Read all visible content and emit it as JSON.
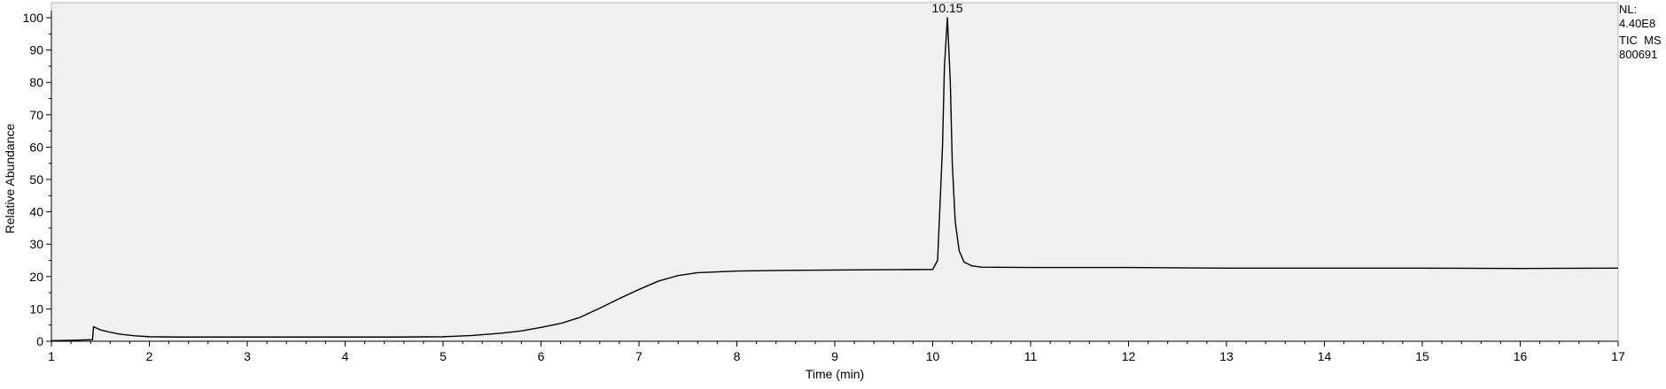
{
  "chart_data": {
    "type": "line",
    "xlabel": "Time (min)",
    "ylabel": "Relative Abundance",
    "xlim": [
      1,
      17
    ],
    "ylim": [
      0,
      100
    ],
    "x_ticks": [
      "1",
      "2",
      "3",
      "4",
      "5",
      "6",
      "7",
      "8",
      "9",
      "10",
      "11",
      "12",
      "13",
      "14",
      "15",
      "16",
      "17"
    ],
    "y_ticks": [
      "0",
      "10",
      "20",
      "30",
      "40",
      "50",
      "60",
      "70",
      "80",
      "90",
      "100"
    ],
    "x_minor_step": 0.2,
    "y_minor_step": 5,
    "grid": false,
    "plot_background": "#f0f0f0",
    "line_color": "#000000",
    "peak_label": "10.15",
    "peak": {
      "x": 10.15,
      "y": 100
    },
    "info": {
      "nl_label": "NL:",
      "nl_value": "4.40E8",
      "scan": "TIC  MS",
      "file": "800691"
    },
    "series": [
      {
        "x": [
          1.0,
          1.2,
          1.42,
          1.43,
          1.5,
          1.6,
          1.7,
          1.85,
          2.0,
          2.3,
          2.6,
          3.0,
          3.5,
          4.0,
          4.5,
          5.0,
          5.3,
          5.6,
          5.8,
          6.0,
          6.2,
          6.4,
          6.6,
          6.8,
          7.0,
          7.2,
          7.4,
          7.6,
          8.0,
          8.5,
          9.0,
          9.5,
          10.0,
          10.05,
          10.1,
          10.12,
          10.15,
          10.18,
          10.2,
          10.23,
          10.27,
          10.32,
          10.4,
          10.5,
          11.0,
          12.0,
          13.0,
          14.0,
          15.0,
          16.0,
          17.0
        ],
        "y": [
          0.2,
          0.3,
          0.5,
          4.5,
          3.5,
          2.8,
          2.2,
          1.7,
          1.4,
          1.3,
          1.3,
          1.3,
          1.3,
          1.3,
          1.3,
          1.4,
          1.8,
          2.5,
          3.2,
          4.3,
          5.5,
          7.4,
          10.2,
          13.2,
          16.0,
          18.6,
          20.3,
          21.2,
          21.7,
          21.9,
          22.0,
          22.1,
          22.2,
          25.0,
          60.0,
          85.0,
          100.0,
          80.0,
          55.0,
          37.0,
          28.0,
          24.5,
          23.3,
          22.9,
          22.8,
          22.8,
          22.6,
          22.6,
          22.6,
          22.5,
          22.6
        ]
      }
    ]
  }
}
